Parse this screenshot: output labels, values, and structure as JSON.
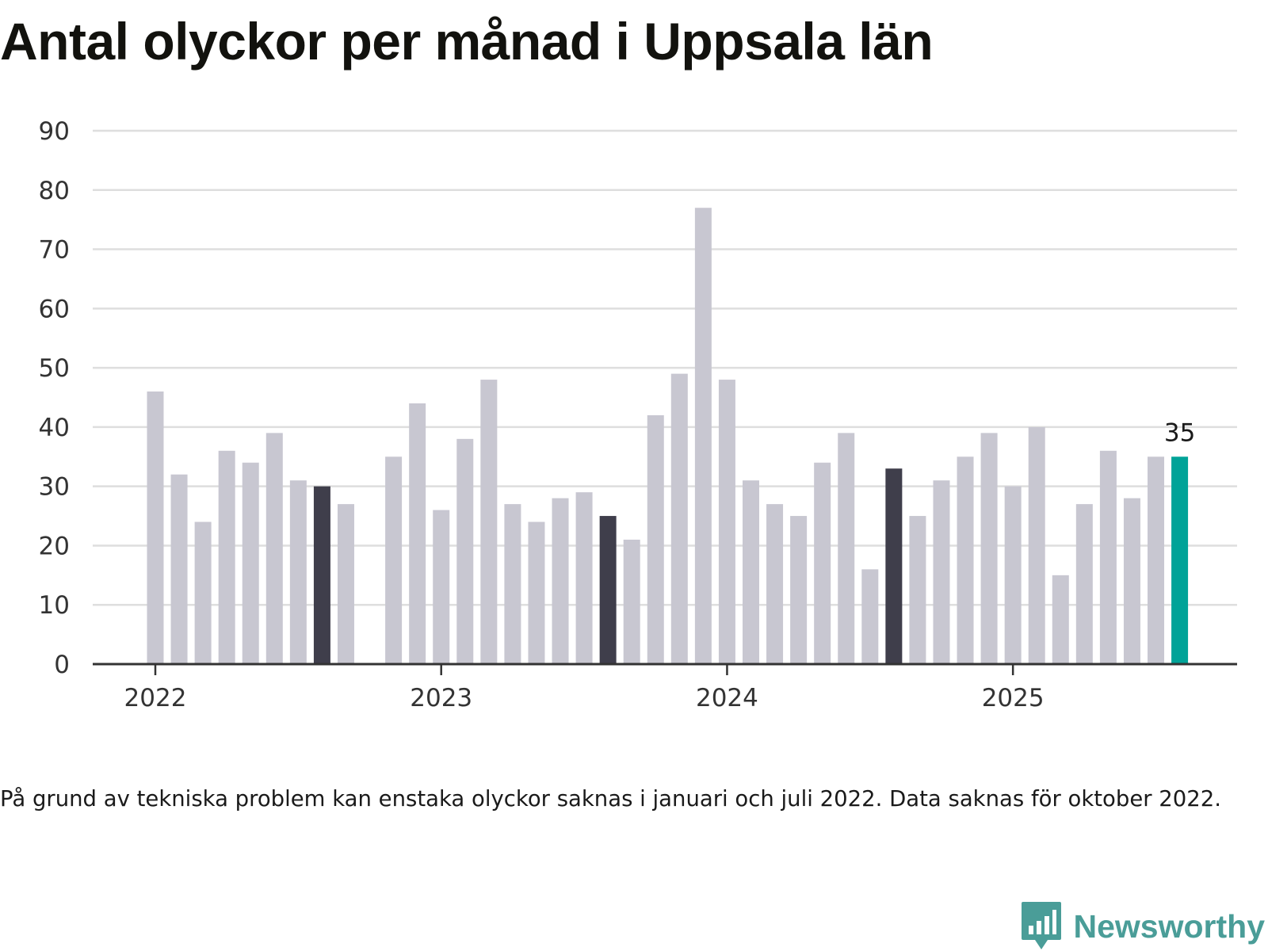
{
  "chart_data": {
    "type": "bar",
    "title": "Antal olyckor per månad i Uppsala län",
    "subtitle": "",
    "xlabel": "",
    "ylabel": "",
    "ylim": [
      0,
      90
    ],
    "yticks": [
      "0",
      "10",
      "20",
      "30",
      "40",
      "50",
      "60",
      "70",
      "80",
      "90"
    ],
    "year_labels": [
      "2022",
      "2023",
      "2024",
      "2025"
    ],
    "grid": true,
    "legend": "none",
    "categories": [
      "2022-01",
      "2022-02",
      "2022-03",
      "2022-04",
      "2022-05",
      "2022-06",
      "2022-07",
      "2022-08",
      "2022-09",
      "2022-10",
      "2022-11",
      "2022-12",
      "2023-01",
      "2023-02",
      "2023-03",
      "2023-04",
      "2023-05",
      "2023-06",
      "2023-07",
      "2023-08",
      "2023-09",
      "2023-10",
      "2023-11",
      "2023-12",
      "2024-01",
      "2024-02",
      "2024-03",
      "2024-04",
      "2024-05",
      "2024-06",
      "2024-07",
      "2024-08",
      "2024-09",
      "2024-10",
      "2024-11",
      "2024-12",
      "2025-01",
      "2025-02",
      "2025-03",
      "2025-04",
      "2025-05",
      "2025-06",
      "2025-07",
      "2025-08"
    ],
    "values": [
      46,
      32,
      24,
      36,
      34,
      39,
      31,
      30,
      27,
      null,
      35,
      44,
      26,
      38,
      48,
      27,
      24,
      28,
      29,
      25,
      21,
      42,
      49,
      77,
      48,
      31,
      27,
      25,
      34,
      39,
      16,
      33,
      25,
      31,
      35,
      39,
      30,
      40,
      15,
      27,
      36,
      28,
      35,
      35
    ],
    "highlight_months": [
      "2022-08",
      "2023-08",
      "2024-08"
    ],
    "latest_month": "2025-08",
    "latest_label": "35",
    "colors": {
      "bar": "#c8c7d1",
      "highlight": "#3f3e4b",
      "latest": "#00a398",
      "grid": "#dedede",
      "axis": "#333333"
    },
    "note": "På grund av tekniska problem kan enstaka olyckor saknas i januari och juli 2022. Data saknas för oktober 2022."
  },
  "brand": {
    "name": "Newsworthy",
    "icon": "newsworthy-logo-icon",
    "color": "#4a9d98"
  }
}
